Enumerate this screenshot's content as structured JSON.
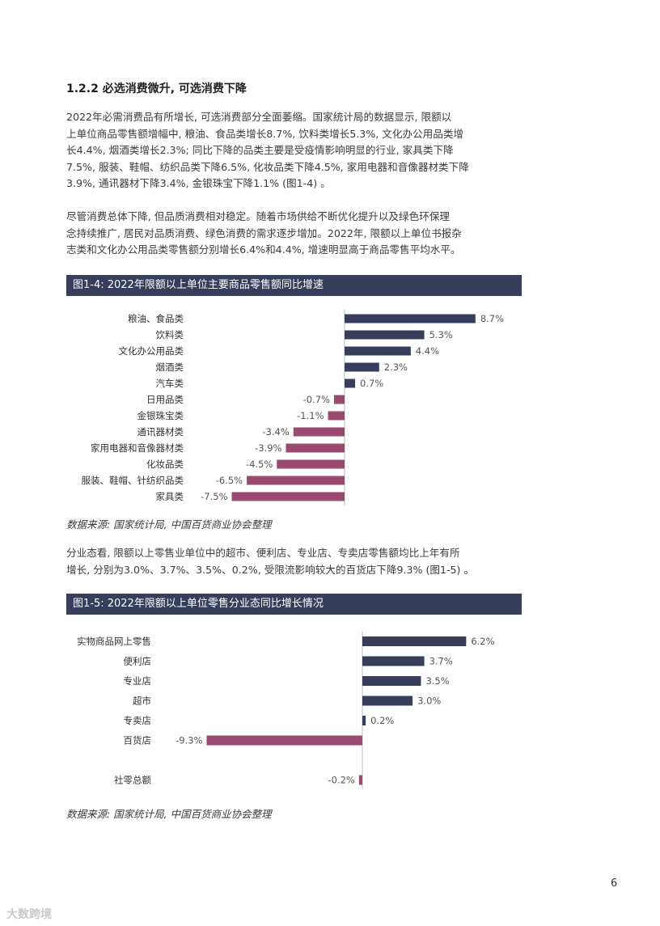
{
  "section": {
    "heading": "1.2.2 必选消费微升, 可选消费下降"
  },
  "paragraphs": [
    {
      "lines": [
        "2022年必需消费品有所增长, 可选消费部分全面萎缩。国家统计局的数据显示, 限额以",
        "上单位商品零售额增幅中, 粮油、食品类增长8.7%, 饮料类增长5.3%, 文化办公用品类增",
        "长4.4%, 烟酒类增长2.3%; 同比下降的品类主要是受疫情影响明显的行业, 家具类下降",
        "7.5%, 服装、鞋帽、纺织品类下降6.5%, 化妆品类下降4.5%, 家用电器和音像器材类下降",
        "3.9%, 通讯器材下降3.4%, 金银珠宝下降1.1% (图1-4) 。"
      ]
    },
    {
      "lines": [
        "尽管消费总体下降, 但品质消费相对稳定。随着市场供给不断优化提升以及绿色环保理",
        "念持续推广, 居民对品质消费、绿色消费的需求逐步增加。2022年, 限额以上单位书报杂",
        "志类和文化办公用品类零售额分别增长6.4%和4.4%, 增速明显高于商品零售平均水平。"
      ]
    },
    {
      "lines": [
        "分业态看, 限额以上零售业单位中的超市、便利店、专业店、专卖店零售额均比上年有所",
        "增长, 分别为3.0%、3.7%、3.5%、0.2%, 受限流影响较大的百货店下降9.3% (图1-5) 。"
      ]
    }
  ],
  "figures": [
    {
      "title": "图1-4: 2022年限额以上单位主要商品零售额同比增速",
      "source": "数据来源: 国家统计局, 中国百货商业协会整理"
    },
    {
      "title": "图1-5: 2022年限额以上单位零售分业态同比增长情况",
      "source": "数据来源: 国家统计局, 中国百货商业协会整理"
    }
  ],
  "chart_data": [
    {
      "type": "bar",
      "orientation": "horizontal",
      "categories": [
        "粮油、食品类",
        "饮料类",
        "文化办公用品类",
        "烟酒类",
        "汽车类",
        "日用品类",
        "金银珠宝类",
        "通讯器材类",
        "家用电器和音像器材类",
        "化妆品类",
        "服装、鞋帽、针纺织品类",
        "家具类"
      ],
      "values": [
        8.7,
        5.3,
        4.4,
        2.3,
        0.7,
        -0.7,
        -1.1,
        -3.4,
        -3.9,
        -4.5,
        -6.5,
        -7.5
      ],
      "labels": [
        "8.7%",
        "5.3%",
        "4.4%",
        "2.3%",
        "0.7%",
        "-0.7%",
        "-1.1%",
        "-3.4%",
        "-3.9%",
        "-4.5%",
        "-6.5%",
        "-7.5%"
      ],
      "unit": "%",
      "colors": {
        "positive": "#363e5c",
        "negative": "#9a4a6e"
      }
    },
    {
      "type": "bar",
      "orientation": "horizontal",
      "categories": [
        "实物商品网上零售",
        "便利店",
        "专业店",
        "超市",
        "专卖店",
        "百货店",
        "",
        "社零总额"
      ],
      "values": [
        6.2,
        3.7,
        3.5,
        3.0,
        0.2,
        -9.3,
        null,
        -0.2
      ],
      "labels": [
        "6.2%",
        "3.7%",
        "3.5%",
        "3.0%",
        "0.2%",
        "-9.3%",
        "",
        "-0.2%"
      ],
      "unit": "%",
      "colors": {
        "positive": "#363e5c",
        "negative": "#9a4a6e"
      }
    }
  ],
  "page": {
    "number": "6"
  },
  "watermark": {
    "text": "大数跨境"
  }
}
